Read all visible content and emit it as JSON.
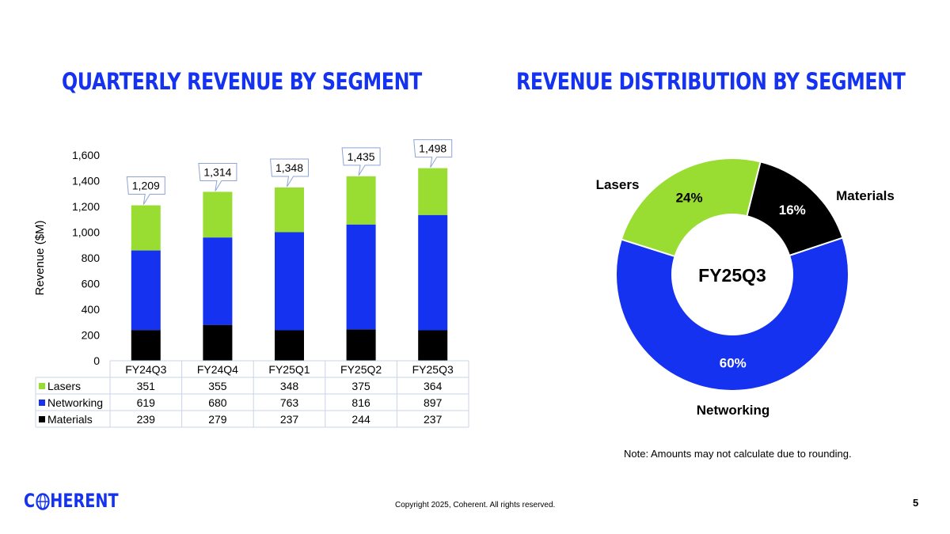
{
  "page": {
    "title_left": "QUARTERLY REVENUE BY SEGMENT",
    "title_right": "REVENUE DISTRIBUTION BY SEGMENT",
    "note": "Note: Amounts may not calculate due to rounding.",
    "copyright": "Copyright 2025, Coherent. All rights reserved.",
    "page_number": "5",
    "logo_text": "COHERENT",
    "logo_icon": "globe-icon"
  },
  "colors": {
    "Lasers": "#99dd33",
    "Networking": "#1432f0",
    "Materials": "#000000",
    "title": "#1432f0"
  },
  "chart_data": [
    {
      "type": "bar",
      "stacked": true,
      "categories": [
        "FY24Q3",
        "FY24Q4",
        "FY25Q1",
        "FY25Q2",
        "FY25Q3"
      ],
      "series": [
        {
          "name": "Materials",
          "values": [
            239,
            279,
            237,
            244,
            237
          ]
        },
        {
          "name": "Networking",
          "values": [
            619,
            680,
            763,
            816,
            897
          ]
        },
        {
          "name": "Lasers",
          "values": [
            351,
            355,
            348,
            375,
            364
          ]
        }
      ],
      "totals": [
        "1,209",
        "1,314",
        "1,348",
        "1,435",
        "1,498"
      ],
      "ylabel": "Revenue ($M)",
      "ylim": [
        0,
        1600
      ],
      "yticks": [
        "0",
        "200",
        "400",
        "600",
        "800",
        "1,000",
        "1,200",
        "1,400",
        "1,600"
      ],
      "grid": false,
      "data_table": true,
      "table_row_order": [
        "Lasers",
        "Networking",
        "Materials"
      ]
    },
    {
      "type": "pie",
      "donut": true,
      "center_label": "FY25Q3",
      "slices": [
        {
          "name": "Materials",
          "value": 16,
          "label": "16%"
        },
        {
          "name": "Networking",
          "value": 60,
          "label": "60%"
        },
        {
          "name": "Lasers",
          "value": 24,
          "label": "24%"
        }
      ]
    }
  ]
}
